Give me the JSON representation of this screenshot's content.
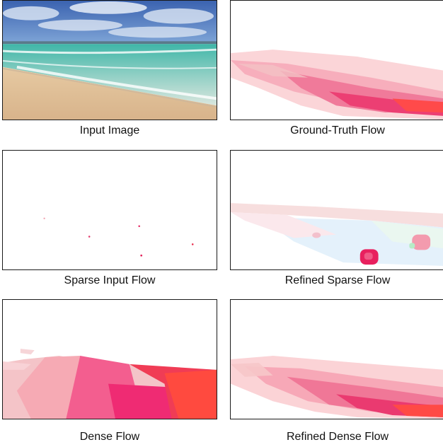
{
  "panels": {
    "input_image": {
      "caption": "Input Image"
    },
    "ground_truth_flow": {
      "caption": "Ground-Truth Flow"
    },
    "sparse_input_flow": {
      "caption": "Sparse Input Flow"
    },
    "refined_sparse_flow": {
      "caption": "Refined Sparse Flow"
    },
    "dense_flow": {
      "caption": "Dense Flow"
    },
    "refined_dense_flow": {
      "caption": "Refined Dense Flow"
    }
  }
}
